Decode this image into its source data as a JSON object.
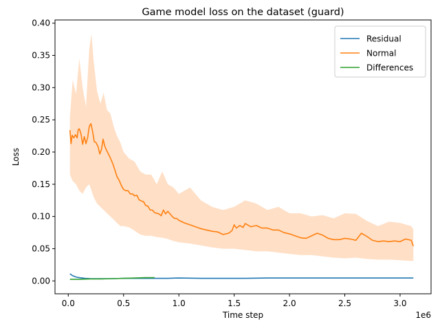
{
  "chart_data": {
    "type": "line",
    "title": "Game model loss on the dataset (guard)",
    "xlabel": "Time step",
    "ylabel": "Loss",
    "x_offset_label": "1e6",
    "xlim": [
      -120000,
      3280000
    ],
    "ylim": [
      -0.02,
      0.405
    ],
    "x_ticks": [
      0.0,
      0.5,
      1.0,
      1.5,
      2.0,
      2.5,
      3.0
    ],
    "x_tick_labels": [
      "0.0",
      "0.5",
      "1.0",
      "1.5",
      "2.0",
      "2.5",
      "3.0"
    ],
    "y_ticks": [
      0.0,
      0.05,
      0.1,
      0.15,
      0.2,
      0.25,
      0.3,
      0.35,
      0.4
    ],
    "y_tick_labels": [
      "0.00",
      "0.05",
      "0.10",
      "0.15",
      "0.20",
      "0.25",
      "0.30",
      "0.35",
      "0.40"
    ],
    "grid": false,
    "legend_position": "top-right",
    "series": [
      {
        "name": "Residual",
        "color": "#1f77b4",
        "x": [
          15000,
          40000,
          70000,
          100000,
          150000,
          200000,
          300000,
          400000,
          500000,
          600000,
          700000,
          800000,
          900000,
          1000000,
          1200000,
          1400000,
          1600000,
          1800000,
          2000000,
          2200000,
          2400000,
          2600000,
          2800000,
          3000000,
          3120000
        ],
        "y": [
          0.011,
          0.008,
          0.006,
          0.005,
          0.004,
          0.0035,
          0.0035,
          0.0035,
          0.004,
          0.004,
          0.004,
          0.004,
          0.004,
          0.0045,
          0.004,
          0.004,
          0.004,
          0.0045,
          0.0045,
          0.0045,
          0.0045,
          0.0045,
          0.0045,
          0.0045,
          0.0045
        ]
      },
      {
        "name": "Normal",
        "color": "#ff7f0e",
        "x": [
          15000,
          25000,
          35000,
          50000,
          65000,
          80000,
          90000,
          100000,
          115000,
          130000,
          145000,
          160000,
          175000,
          190000,
          205000,
          220000,
          235000,
          250000,
          270000,
          285000,
          300000,
          315000,
          330000,
          345000,
          360000,
          380000,
          400000,
          420000,
          440000,
          460000,
          480000,
          500000,
          520000,
          540000,
          560000,
          580000,
          600000,
          620000,
          640000,
          660000,
          680000,
          700000,
          720000,
          740000,
          760000,
          780000,
          800000,
          820000,
          840000,
          860000,
          880000,
          900000,
          920000,
          940000,
          960000,
          980000,
          1000000,
          1050000,
          1100000,
          1150000,
          1200000,
          1250000,
          1300000,
          1350000,
          1400000,
          1450000,
          1480000,
          1500000,
          1520000,
          1550000,
          1580000,
          1600000,
          1630000,
          1650000,
          1700000,
          1750000,
          1800000,
          1850000,
          1900000,
          1950000,
          2000000,
          2050000,
          2100000,
          2150000,
          2200000,
          2250000,
          2300000,
          2350000,
          2400000,
          2450000,
          2500000,
          2550000,
          2600000,
          2650000,
          2700000,
          2750000,
          2800000,
          2850000,
          2900000,
          2950000,
          3000000,
          3050000,
          3100000,
          3120000
        ],
        "y": [
          0.234,
          0.213,
          0.226,
          0.222,
          0.227,
          0.222,
          0.235,
          0.236,
          0.228,
          0.212,
          0.224,
          0.213,
          0.222,
          0.24,
          0.244,
          0.232,
          0.216,
          0.215,
          0.208,
          0.197,
          0.204,
          0.22,
          0.209,
          0.203,
          0.198,
          0.191,
          0.183,
          0.173,
          0.162,
          0.156,
          0.148,
          0.142,
          0.14,
          0.14,
          0.135,
          0.135,
          0.132,
          0.133,
          0.126,
          0.124,
          0.123,
          0.117,
          0.116,
          0.11,
          0.11,
          0.106,
          0.105,
          0.104,
          0.101,
          0.11,
          0.104,
          0.108,
          0.104,
          0.1,
          0.097,
          0.097,
          0.094,
          0.09,
          0.087,
          0.084,
          0.081,
          0.079,
          0.077,
          0.076,
          0.072,
          0.074,
          0.078,
          0.087,
          0.082,
          0.086,
          0.083,
          0.089,
          0.086,
          0.084,
          0.086,
          0.082,
          0.082,
          0.079,
          0.079,
          0.075,
          0.073,
          0.07,
          0.067,
          0.066,
          0.07,
          0.074,
          0.071,
          0.066,
          0.064,
          0.064,
          0.066,
          0.065,
          0.063,
          0.074,
          0.069,
          0.063,
          0.061,
          0.062,
          0.061,
          0.062,
          0.061,
          0.065,
          0.063,
          0.054
        ]
      },
      {
        "name": "Differences",
        "color": "#2ca02c",
        "x": [
          15000,
          100000,
          200000,
          300000,
          400000,
          500000,
          600000,
          700000,
          780000
        ],
        "y": [
          0.0025,
          0.0025,
          0.003,
          0.003,
          0.0035,
          0.004,
          0.0045,
          0.005,
          0.005
        ]
      }
    ],
    "confidence_band": {
      "series": "Normal",
      "color": "#ffdfc6",
      "x": [
        15000,
        40000,
        70000,
        100000,
        130000,
        160000,
        190000,
        210000,
        230000,
        260000,
        290000,
        320000,
        350000,
        380000,
        410000,
        440000,
        470000,
        500000,
        550000,
        600000,
        650000,
        700000,
        750000,
        800000,
        850000,
        900000,
        950000,
        1000000,
        1100000,
        1200000,
        1300000,
        1400000,
        1500000,
        1600000,
        1700000,
        1800000,
        1900000,
        2000000,
        2100000,
        2200000,
        2300000,
        2400000,
        2500000,
        2600000,
        2700000,
        2800000,
        2900000,
        3000000,
        3100000,
        3120000
      ],
      "upper": [
        0.255,
        0.312,
        0.29,
        0.345,
        0.3,
        0.27,
        0.36,
        0.383,
        0.34,
        0.295,
        0.275,
        0.292,
        0.265,
        0.26,
        0.24,
        0.225,
        0.215,
        0.2,
        0.19,
        0.185,
        0.17,
        0.165,
        0.165,
        0.15,
        0.17,
        0.15,
        0.145,
        0.135,
        0.145,
        0.125,
        0.115,
        0.11,
        0.115,
        0.125,
        0.12,
        0.11,
        0.115,
        0.105,
        0.105,
        0.1,
        0.102,
        0.097,
        0.105,
        0.104,
        0.093,
        0.085,
        0.092,
        0.09,
        0.085,
        0.08
      ],
      "lower": [
        0.165,
        0.155,
        0.15,
        0.14,
        0.135,
        0.145,
        0.15,
        0.14,
        0.13,
        0.12,
        0.115,
        0.11,
        0.105,
        0.1,
        0.095,
        0.09,
        0.085,
        0.085,
        0.083,
        0.078,
        0.072,
        0.07,
        0.07,
        0.068,
        0.067,
        0.065,
        0.062,
        0.06,
        0.058,
        0.055,
        0.052,
        0.05,
        0.05,
        0.048,
        0.046,
        0.046,
        0.044,
        0.042,
        0.04,
        0.04,
        0.038,
        0.036,
        0.035,
        0.036,
        0.034,
        0.033,
        0.033,
        0.032,
        0.031,
        0.031
      ]
    }
  }
}
